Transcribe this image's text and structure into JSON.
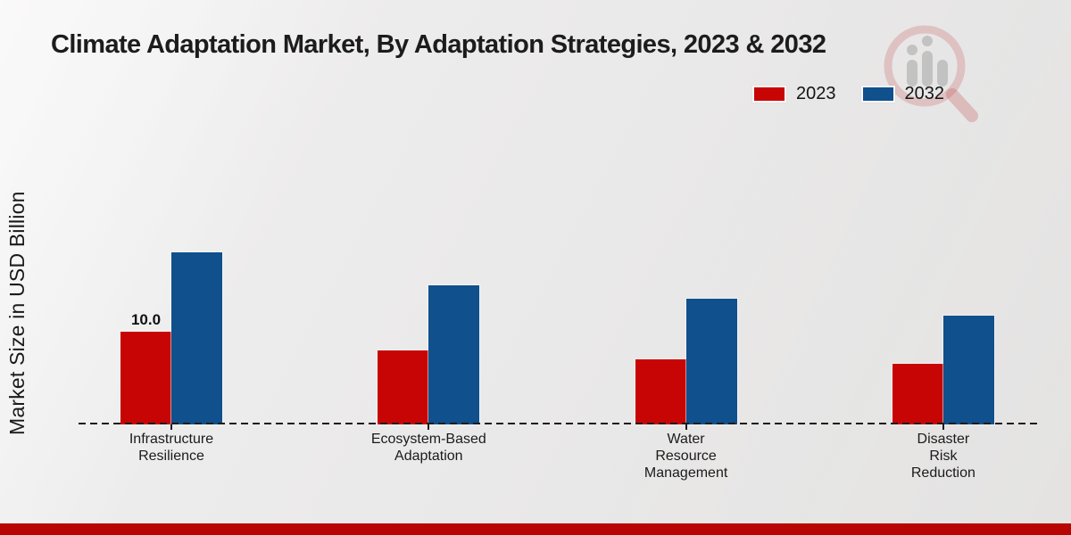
{
  "title": "Climate Adaptation Market, By Adaptation Strategies, 2023 & 2032",
  "y_axis": {
    "label": "Market Size in USD Billion"
  },
  "legend": {
    "items": [
      {
        "label": "2023",
        "color": "#c80505"
      },
      {
        "label": "2032",
        "color": "#10508c"
      }
    ]
  },
  "footer": {
    "color": "#b90404"
  },
  "watermark": {
    "icon": "magnifier-bar-chart-logo"
  },
  "chart_data": {
    "type": "bar",
    "title": "Climate Adaptation Market, By Adaptation Strategies, 2023 & 2032",
    "ylabel": "Market Size in USD Billion",
    "xlabel": "",
    "categories": [
      "Infrastructure\nResilience",
      "Ecosystem-Based\nAdaptation",
      "Water\nResource\nManagement",
      "Disaster\nRisk\nReduction"
    ],
    "series": [
      {
        "name": "2023",
        "color": "#c80505",
        "values": [
          10.0,
          8.0,
          7.0,
          6.5
        ]
      },
      {
        "name": "2032",
        "color": "#10508c",
        "values": [
          18.6,
          15.0,
          13.6,
          11.7
        ]
      }
    ],
    "bar_value_labels": [
      {
        "series_index": 0,
        "category_index": 0,
        "text": "10.0"
      }
    ],
    "ylim": [
      0,
      20
    ],
    "grid": false,
    "legend_position": "top-right",
    "baseline_style": "dashed"
  }
}
